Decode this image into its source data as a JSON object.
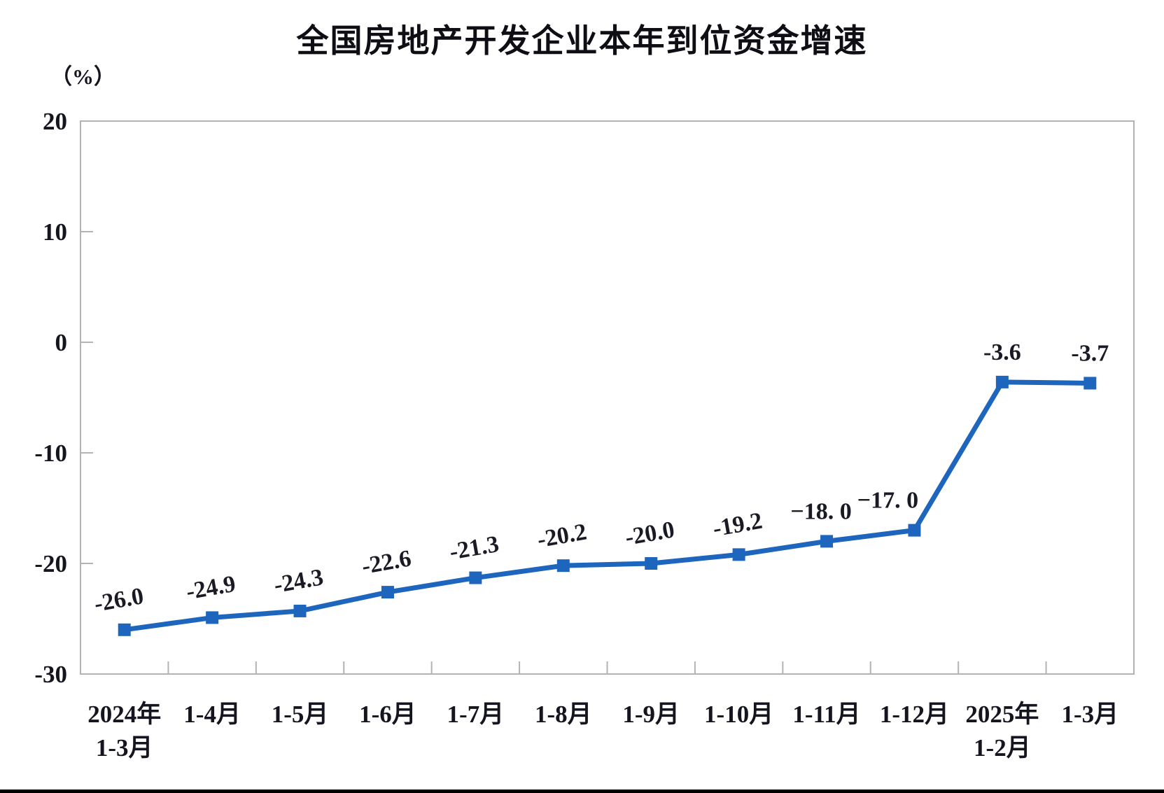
{
  "chart_data": {
    "type": "line",
    "title": "全国房地产开发企业本年到位资金增速",
    "unit": "（%）",
    "categories": [
      "2024年\n1-3月",
      "1-4月",
      "1-5月",
      "1-6月",
      "1-7月",
      "1-8月",
      "1-9月",
      "1-10月",
      "1-11月",
      "1-12月",
      "2025年\n1-2月",
      "1-3月"
    ],
    "values": [
      -26.0,
      -24.9,
      -24.3,
      -22.6,
      -21.3,
      -20.2,
      -20.0,
      -19.2,
      -18.0,
      -17.0,
      -3.6,
      -3.7
    ],
    "point_labels": [
      "-26.0",
      "-24.9",
      "-24.3",
      "-22.6",
      "-21.3",
      "-20.2",
      "-20.0",
      "-19.2",
      "−18. 0",
      "−17. 0",
      "-3.6",
      "-3.7"
    ],
    "ylabel": "",
    "xlabel": "",
    "ylim": [
      -30,
      20
    ],
    "yticks": [
      20,
      10,
      0,
      -10,
      -20,
      -30
    ],
    "grid": "off",
    "legend": "none",
    "line_color": "#1e66bd",
    "axis_color": "#b3b3b3",
    "text_color": "#15151f"
  }
}
